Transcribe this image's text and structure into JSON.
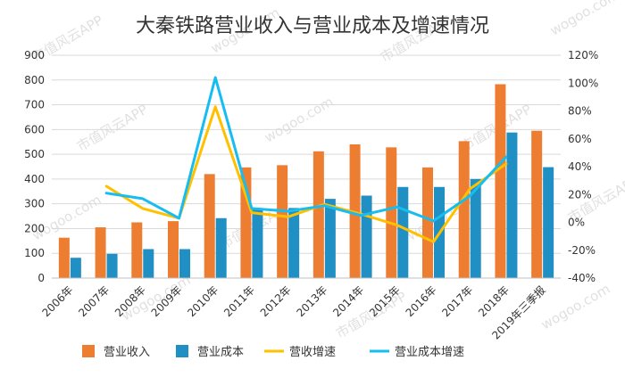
{
  "chart_data": {
    "type": "bar",
    "title": "大秦铁路营业收入与营业成本及增速情况",
    "categories": [
      "2006年",
      "2007年",
      "2008年",
      "2009年",
      "2010年",
      "2011年",
      "2012年",
      "2013年",
      "2014年",
      "2015年",
      "2016年",
      "2017年",
      "2018年",
      "2019年三季报"
    ],
    "y_left": {
      "min": 0,
      "max": 900,
      "step": 100,
      "ticks": [
        "0",
        "100",
        "200",
        "300",
        "400",
        "500",
        "600",
        "700",
        "800",
        "900"
      ]
    },
    "y_right": {
      "min": -40,
      "max": 120,
      "step": 20,
      "ticks": [
        "-40%",
        "-20%",
        "0%",
        "20%",
        "40%",
        "60%",
        "80%",
        "100%",
        "120%"
      ]
    },
    "series": [
      {
        "name": "营业收入",
        "type": "bar",
        "axis": "left",
        "color": "#ED7D31",
        "values": [
          163,
          205,
          225,
          230,
          420,
          447,
          456,
          512,
          540,
          528,
          447,
          553,
          783,
          595
        ]
      },
      {
        "name": "营业成本",
        "type": "bar",
        "axis": "left",
        "color": "#1F8FC4",
        "values": [
          82,
          98,
          117,
          117,
          242,
          280,
          283,
          320,
          333,
          368,
          368,
          400,
          588,
          448
        ]
      },
      {
        "name": "营收增速",
        "type": "line",
        "axis": "right",
        "color": "#FFC000",
        "values": [
          null,
          26,
          10,
          3,
          83,
          7,
          4,
          13,
          6,
          -2,
          -14,
          24,
          42,
          null
        ]
      },
      {
        "name": "营业成本增速",
        "type": "line",
        "axis": "right",
        "color": "#16BDF0",
        "values": [
          null,
          21,
          17,
          3,
          104,
          10,
          8,
          12,
          5,
          11,
          1,
          19,
          47,
          null
        ]
      }
    ],
    "legend_position": "bottom",
    "grid": true
  },
  "watermark": {
    "text": "市值风云APP",
    "site": "wogoo.com"
  }
}
